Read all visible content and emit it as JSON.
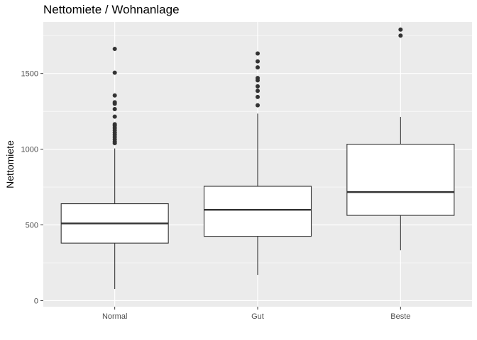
{
  "chart_data": {
    "type": "boxplot",
    "title": "Nettomiete / Wohnanlage",
    "xlabel": "",
    "ylabel": "Nettomiete",
    "categories": [
      "Normal",
      "Gut",
      "Beste"
    ],
    "ylim": [
      -40,
      1840
    ],
    "yticks": [
      0,
      500,
      1000,
      1500
    ],
    "grid": true,
    "boxes": [
      {
        "category": "Normal",
        "whisker_low": 77,
        "q1": 380,
        "median": 510,
        "q3": 640,
        "whisker_high": 1005,
        "outliers": [
          1040,
          1050,
          1065,
          1080,
          1095,
          1110,
          1125,
          1140,
          1155,
          1165,
          1215,
          1265,
          1300,
          1310,
          1355,
          1505,
          1662
        ]
      },
      {
        "category": "Gut",
        "whisker_low": 170,
        "q1": 425,
        "median": 600,
        "q3": 755,
        "whisker_high": 1235,
        "outliers": [
          1290,
          1345,
          1385,
          1415,
          1455,
          1470,
          1540,
          1580,
          1632
        ]
      },
      {
        "category": "Beste",
        "whisker_low": 333,
        "q1": 563,
        "median": 717,
        "q3": 1033,
        "whisker_high": 1213,
        "outliers": [
          1750,
          1790
        ]
      }
    ],
    "colors": {
      "panel": "#ebebeb",
      "grid": "#ffffff",
      "box_fill": "#ffffff",
      "box_line": "#333333",
      "tick_text": "#4d4d4d"
    }
  }
}
